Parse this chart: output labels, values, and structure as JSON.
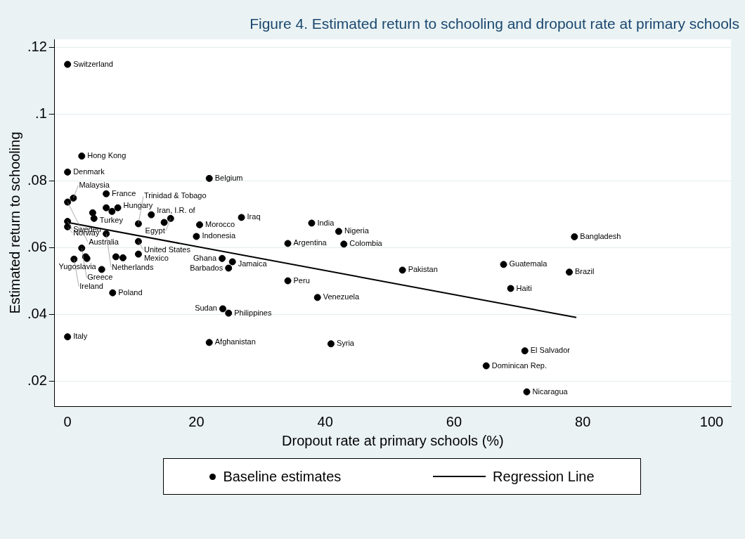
{
  "chart_data": {
    "type": "scatter",
    "title": "Figure 4. Estimated return to schooling and dropout rate at primary schools",
    "xlabel": "Dropout rate at primary schools (%)",
    "ylabel": "Estimated return to schooling",
    "xlim": [
      -2,
      103
    ],
    "xticks": [
      0,
      20,
      40,
      60,
      80,
      100
    ],
    "ylim": [
      0.0125,
      0.1225
    ],
    "yticks": [
      {
        "value": 0.02,
        "label": ".02"
      },
      {
        "value": 0.04,
        "label": ".04"
      },
      {
        "value": 0.06,
        "label": ".06"
      },
      {
        "value": 0.08,
        "label": ".08"
      },
      {
        "value": 0.1,
        "label": ".1"
      },
      {
        "value": 0.12,
        "label": ".12"
      }
    ],
    "grid": "y",
    "legend": "bottom",
    "series": [
      {
        "name": "Baseline estimates",
        "marker": "circle",
        "color": "#000000",
        "x": [
          0,
          2.2,
          0,
          22,
          6,
          0.9,
          0,
          6,
          6.9,
          7.8,
          3.9,
          4.1,
          13,
          16,
          15,
          11,
          20.5,
          27,
          0,
          0,
          6,
          11,
          20,
          2.2,
          1,
          2.8,
          3,
          7.5,
          8.6,
          11,
          5.3,
          7,
          24,
          25.6,
          25,
          0,
          37.9,
          42.1,
          34.2,
          42.9,
          52,
          34.2,
          38.8,
          24.1,
          25,
          22,
          40.9,
          78.7,
          67.7,
          77.9,
          68.8,
          71,
          65,
          71.3
        ],
        "values": [
          0.115,
          0.0875,
          0.0827,
          0.0808,
          0.0762,
          0.0749,
          0.0737,
          0.072,
          0.0709,
          0.072,
          0.0705,
          0.0688,
          0.0699,
          0.0688,
          0.0676,
          0.0672,
          0.0669,
          0.0691,
          0.0679,
          0.0663,
          0.0642,
          0.0619,
          0.0634,
          0.0599,
          0.0566,
          0.0573,
          0.0568,
          0.0573,
          0.057,
          0.0581,
          0.0535,
          0.0465,
          0.0568,
          0.0558,
          0.0539,
          0.0333,
          0.0674,
          0.0649,
          0.0613,
          0.0611,
          0.0533,
          0.0501,
          0.0451,
          0.0417,
          0.0404,
          0.0316,
          0.0312,
          0.0633,
          0.055,
          0.0527,
          0.0478,
          0.0291,
          0.0246,
          0.0168
        ]
      },
      {
        "name": "Regression Line",
        "type": "line",
        "color": "#000000",
        "x": [
          0,
          79
        ],
        "values": [
          0.0676,
          0.0391
        ]
      }
    ],
    "annotations": [
      {
        "text": "Switzerland",
        "x": 0,
        "y": 0.115
      },
      {
        "text": "Hong Kong",
        "x": 2.2,
        "y": 0.0875
      },
      {
        "text": "Denmark",
        "x": 0,
        "y": 0.0827
      },
      {
        "text": "Belgium",
        "x": 22,
        "y": 0.0808
      },
      {
        "text": "France",
        "x": 6,
        "y": 0.0762
      },
      {
        "text": "Malaysia",
        "x": 0.9,
        "y": 0.0749
      },
      {
        "text": "Australia",
        "x": 0,
        "y": 0.0737
      },
      {
        "text": "Hungary",
        "x": 7.8,
        "y": 0.072
      },
      {
        "text": "Turkey",
        "x": 4.1,
        "y": 0.0688
      },
      {
        "text": "Iran, I.R. of",
        "x": 13,
        "y": 0.0699
      },
      {
        "text": "Egypt",
        "x": 16,
        "y": 0.0688
      },
      {
        "text": "Trinidad & Tobago",
        "x": 11,
        "y": 0.0672
      },
      {
        "text": "Morocco",
        "x": 20.5,
        "y": 0.0669
      },
      {
        "text": "Iraq",
        "x": 27,
        "y": 0.0691
      },
      {
        "text": "Sweden",
        "x": 0,
        "y": 0.0679
      },
      {
        "text": "Norway",
        "x": 0,
        "y": 0.0663
      },
      {
        "text": "Netherlands",
        "x": 6,
        "y": 0.0642
      },
      {
        "text": "United States",
        "x": 11,
        "y": 0.0619
      },
      {
        "text": "Indonesia",
        "x": 20,
        "y": 0.0634
      },
      {
        "text": "Greece",
        "x": 2.2,
        "y": 0.0599
      },
      {
        "text": "Ireland",
        "x": 1,
        "y": 0.0566
      },
      {
        "text": "Mexico",
        "x": 11,
        "y": 0.0581
      },
      {
        "text": "Yugoslavia",
        "x": 5.3,
        "y": 0.0535
      },
      {
        "text": "Poland",
        "x": 7,
        "y": 0.0465
      },
      {
        "text": "Ghana",
        "x": 24,
        "y": 0.0568
      },
      {
        "text": "Jamaica",
        "x": 25.6,
        "y": 0.0558
      },
      {
        "text": "Barbados",
        "x": 25,
        "y": 0.0539
      },
      {
        "text": "Italy",
        "x": 0,
        "y": 0.0333
      },
      {
        "text": "India",
        "x": 37.9,
        "y": 0.0674
      },
      {
        "text": "Nigeria",
        "x": 42.1,
        "y": 0.0649
      },
      {
        "text": "Argentina",
        "x": 34.2,
        "y": 0.0613
      },
      {
        "text": "Colombia",
        "x": 42.9,
        "y": 0.0611
      },
      {
        "text": "Pakistan",
        "x": 52,
        "y": 0.0533
      },
      {
        "text": "Peru",
        "x": 34.2,
        "y": 0.0501
      },
      {
        "text": "Venezuela",
        "x": 38.8,
        "y": 0.0451
      },
      {
        "text": "Sudan",
        "x": 24.1,
        "y": 0.0417
      },
      {
        "text": "Philippines",
        "x": 25,
        "y": 0.0404
      },
      {
        "text": "Afghanistan",
        "x": 22,
        "y": 0.0316
      },
      {
        "text": "Syria",
        "x": 40.9,
        "y": 0.0312
      },
      {
        "text": "Bangladesh",
        "x": 78.7,
        "y": 0.0633
      },
      {
        "text": "Guatemala",
        "x": 67.7,
        "y": 0.055
      },
      {
        "text": "Brazil",
        "x": 77.9,
        "y": 0.0527
      },
      {
        "text": "Haiti",
        "x": 68.8,
        "y": 0.0478
      },
      {
        "text": "El Salvador",
        "x": 71,
        "y": 0.0291
      },
      {
        "text": "Dominican Rep.",
        "x": 65,
        "y": 0.0246
      },
      {
        "text": "Nicaragua",
        "x": 71.3,
        "y": 0.0168
      }
    ]
  }
}
